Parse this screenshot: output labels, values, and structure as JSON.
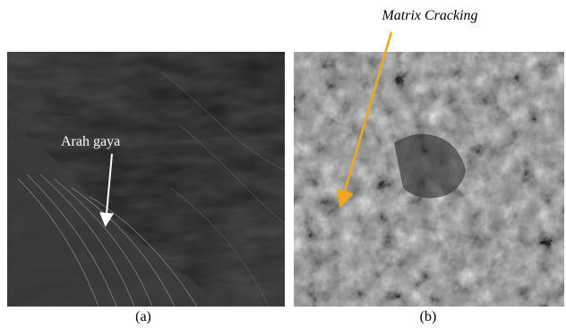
{
  "panels": [
    {
      "label": "(a)",
      "annotation": "Arah gaya"
    },
    {
      "label": "(b)",
      "annotation": "Matrix Cracking"
    }
  ]
}
